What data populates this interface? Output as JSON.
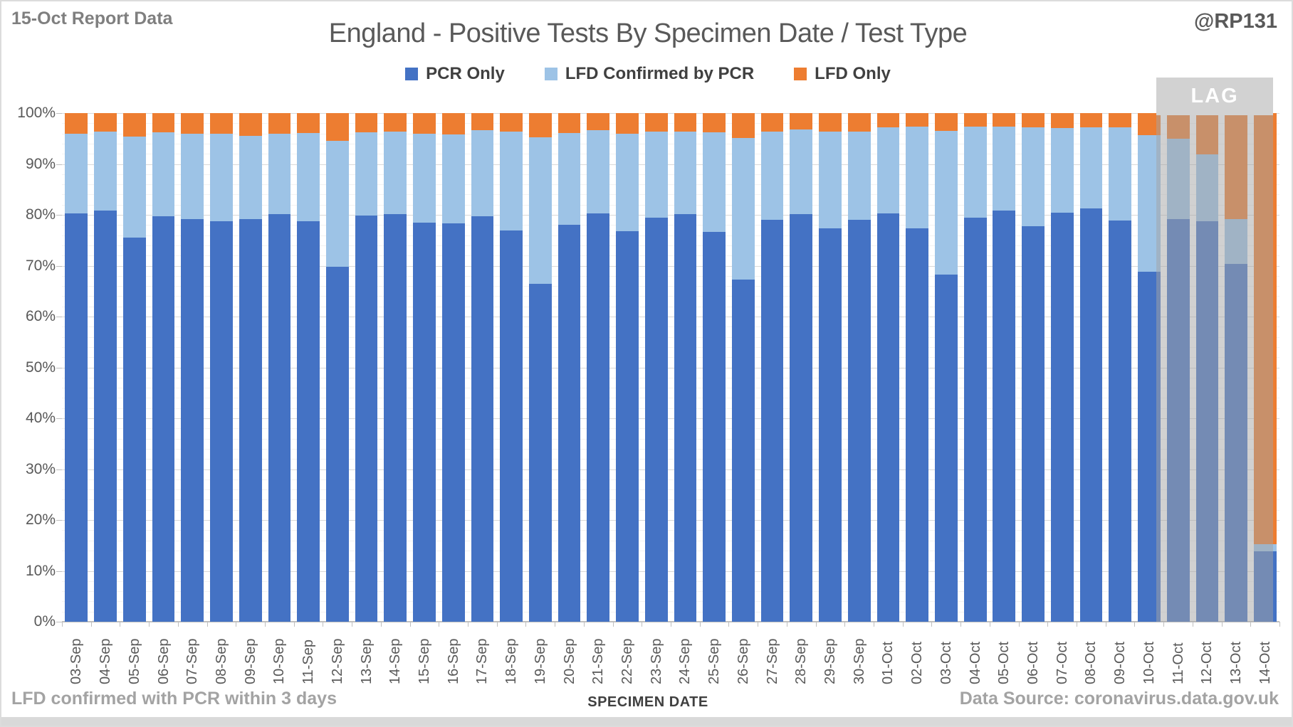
{
  "header": {
    "report_label": "15-Oct Report Data",
    "handle": "@RP131",
    "title": "England - Positive Tests By Specimen Date / Test Type"
  },
  "footer": {
    "note": "LFD confirmed with PCR within 3 days",
    "xlabel": "SPECIMEN DATE",
    "source": "Data Source: coronavirus.data.gov.uk"
  },
  "lag": {
    "label": "LAG",
    "box_color": "#d2d2d2",
    "overlay_color": "rgba(163,163,163,0.5)",
    "covers_dates": [
      "11-Oct",
      "12-Oct",
      "13-Oct",
      "14-Oct"
    ]
  },
  "chart_data": {
    "type": "bar",
    "stacked": true,
    "normalized_percent": true,
    "title": "England - Positive Tests By Specimen Date / Test Type",
    "xlabel": "SPECIMEN DATE",
    "ylabel": "",
    "ylim": [
      0,
      100
    ],
    "ytick_labels": [
      "0%",
      "10%",
      "20%",
      "30%",
      "40%",
      "50%",
      "60%",
      "70%",
      "80%",
      "90%",
      "100%"
    ],
    "grid": "horizontal-major-and-minor",
    "legend_position": "top-center",
    "categories": [
      "03-Sep",
      "04-Sep",
      "05-Sep",
      "06-Sep",
      "07-Sep",
      "08-Sep",
      "09-Sep",
      "10-Sep",
      "11-Sep",
      "12-Sep",
      "13-Sep",
      "14-Sep",
      "15-Sep",
      "16-Sep",
      "17-Sep",
      "18-Sep",
      "19-Sep",
      "20-Sep",
      "21-Sep",
      "22-Sep",
      "23-Sep",
      "24-Sep",
      "25-Sep",
      "26-Sep",
      "27-Sep",
      "28-Sep",
      "29-Sep",
      "30-Sep",
      "01-Oct",
      "02-Oct",
      "03-Oct",
      "04-Oct",
      "05-Oct",
      "06-Oct",
      "07-Oct",
      "08-Oct",
      "09-Oct",
      "10-Oct",
      "11-Oct",
      "12-Oct",
      "13-Oct",
      "14-Oct"
    ],
    "series": [
      {
        "name": "PCR Only",
        "color": "#4472C4",
        "values": [
          80.3,
          80.8,
          75.5,
          79.7,
          79.1,
          78.7,
          79.2,
          80.2,
          78.7,
          69.8,
          79.8,
          80.1,
          78.4,
          78.3,
          79.7,
          76.9,
          66.5,
          78.0,
          80.3,
          76.8,
          79.4,
          80.2,
          76.7,
          67.3,
          79.0,
          80.2,
          77.3,
          79.0,
          80.3,
          77.3,
          68.2,
          79.4,
          80.8,
          77.8,
          80.4,
          81.2,
          78.9,
          68.8,
          79.1,
          78.8,
          70.3,
          13.8
        ]
      },
      {
        "name": "LFD Confirmed by PCR",
        "color": "#9DC3E6",
        "values": [
          15.7,
          15.5,
          19.9,
          16.5,
          16.9,
          17.2,
          16.3,
          15.8,
          17.4,
          24.8,
          16.4,
          16.2,
          17.5,
          17.5,
          16.9,
          19.4,
          28.8,
          18.1,
          16.3,
          19.2,
          17.0,
          16.2,
          19.5,
          27.8,
          17.4,
          16.6,
          19.1,
          17.4,
          16.9,
          20.0,
          28.3,
          18.0,
          16.6,
          19.4,
          16.6,
          16.0,
          18.3,
          26.8,
          15.9,
          13.1,
          8.9,
          1.4
        ]
      },
      {
        "name": "LFD Only",
        "color": "#ED7D31",
        "values": [
          4.0,
          3.7,
          4.6,
          3.8,
          4.0,
          4.1,
          4.5,
          4.0,
          3.9,
          5.4,
          3.8,
          3.7,
          4.1,
          4.2,
          3.4,
          3.7,
          4.7,
          3.9,
          3.4,
          4.0,
          3.6,
          3.6,
          3.8,
          4.9,
          3.6,
          3.2,
          3.6,
          3.6,
          2.8,
          2.7,
          3.5,
          2.6,
          2.6,
          2.8,
          3.0,
          2.8,
          2.8,
          4.4,
          5.0,
          8.1,
          20.8,
          84.8
        ]
      }
    ]
  }
}
